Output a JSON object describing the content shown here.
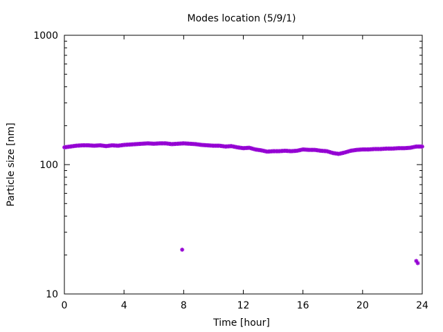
{
  "chart_data": {
    "type": "scatter",
    "title": "Modes location (5/9/1)",
    "xlabel": "Time [hour]",
    "ylabel": "Particle size [nm]",
    "xlim": [
      0,
      24
    ],
    "ylim": [
      10,
      1000
    ],
    "yscale": "log",
    "grid": false,
    "legend": "none",
    "xticks": [
      0,
      4,
      8,
      12,
      16,
      20,
      24
    ],
    "xtick_labels": [
      "0",
      "4",
      "8",
      "12",
      "16",
      "20",
      "24"
    ],
    "yticks": [
      10,
      100,
      1000
    ],
    "ytick_labels": [
      "10",
      "100",
      "1000"
    ],
    "color": "#9400d3",
    "series": [
      {
        "points": [
          [
            0.0,
            136
          ],
          [
            0.4,
            138
          ],
          [
            0.8,
            140
          ],
          [
            1.2,
            141
          ],
          [
            1.6,
            141
          ],
          [
            2.0,
            140
          ],
          [
            2.4,
            141
          ],
          [
            2.8,
            139
          ],
          [
            3.2,
            141
          ],
          [
            3.6,
            140
          ],
          [
            4.0,
            142
          ],
          [
            4.4,
            143
          ],
          [
            4.8,
            144
          ],
          [
            5.2,
            145
          ],
          [
            5.6,
            146
          ],
          [
            6.0,
            145
          ],
          [
            6.4,
            146
          ],
          [
            6.8,
            146
          ],
          [
            7.2,
            144
          ],
          [
            7.6,
            145
          ],
          [
            8.0,
            146
          ],
          [
            8.4,
            145
          ],
          [
            8.8,
            144
          ],
          [
            9.2,
            142
          ],
          [
            9.6,
            141
          ],
          [
            10.0,
            140
          ],
          [
            10.4,
            140
          ],
          [
            10.8,
            138
          ],
          [
            11.2,
            139
          ],
          [
            11.6,
            136
          ],
          [
            12.0,
            134
          ],
          [
            12.4,
            135
          ],
          [
            12.8,
            131
          ],
          [
            13.2,
            129
          ],
          [
            13.6,
            126
          ],
          [
            14.0,
            127
          ],
          [
            14.4,
            127
          ],
          [
            14.8,
            128
          ],
          [
            15.2,
            127
          ],
          [
            15.6,
            128
          ],
          [
            16.0,
            131
          ],
          [
            16.4,
            130
          ],
          [
            16.8,
            130
          ],
          [
            17.2,
            128
          ],
          [
            17.6,
            127
          ],
          [
            18.0,
            123
          ],
          [
            18.4,
            121
          ],
          [
            18.8,
            124
          ],
          [
            19.2,
            128
          ],
          [
            19.6,
            130
          ],
          [
            20.0,
            131
          ],
          [
            20.4,
            131
          ],
          [
            20.8,
            132
          ],
          [
            21.2,
            132
          ],
          [
            21.6,
            133
          ],
          [
            22.0,
            133
          ],
          [
            22.4,
            134
          ],
          [
            22.8,
            134
          ],
          [
            23.2,
            135
          ],
          [
            23.6,
            138
          ],
          [
            24.0,
            138
          ],
          [
            7.9,
            22
          ],
          [
            23.6,
            18
          ],
          [
            23.7,
            17.3
          ]
        ]
      }
    ]
  }
}
